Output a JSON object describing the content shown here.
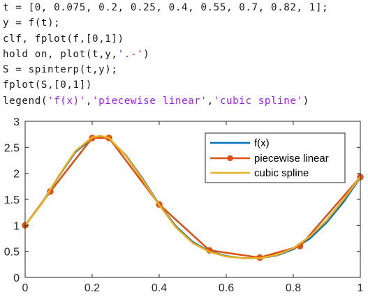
{
  "code": {
    "lines": [
      [
        {
          "t": "t = [0, 0.075, 0.2, 0.25, 0.4, 0.55, 0.7, 0.82, 1];",
          "s": false
        }
      ],
      [
        {
          "t": "y = f(t);",
          "s": false
        }
      ],
      [
        {
          "t": "clf, fplot(f,[0,1])",
          "s": false
        }
      ],
      [
        {
          "t": "hold on, plot(t,y,",
          "s": false
        },
        {
          "t": "'.-'",
          "s": true
        },
        {
          "t": ")",
          "s": false
        }
      ],
      [
        {
          "t": "S = spinterp(t,y);",
          "s": false
        }
      ],
      [
        {
          "t": "fplot(S,[0,1])",
          "s": false
        }
      ],
      [
        {
          "t": "legend(",
          "s": false
        },
        {
          "t": "'f(x)'",
          "s": true
        },
        {
          "t": ",",
          "s": false
        },
        {
          "t": "'piecewise linear'",
          "s": true
        },
        {
          "t": ",",
          "s": false
        },
        {
          "t": "'cubic spline'",
          "s": true
        },
        {
          "t": ")",
          "s": false
        }
      ]
    ]
  },
  "chart_data": {
    "type": "line",
    "xlim": [
      0,
      1
    ],
    "ylim": [
      0,
      3
    ],
    "xticks": [
      "0",
      "0.2",
      "0.4",
      "0.6",
      "0.8",
      "1"
    ],
    "yticks": [
      "0",
      "0.5",
      "1",
      "1.5",
      "2",
      "2.5",
      "3"
    ],
    "grid": false,
    "legend_position": "top-right",
    "series": [
      {
        "name": "f(x)",
        "color": "#0072bd",
        "x": [
          0,
          0.05,
          0.1,
          0.15,
          0.2,
          0.225,
          0.25,
          0.3,
          0.35,
          0.4,
          0.45,
          0.5,
          0.55,
          0.6,
          0.65,
          0.7,
          0.75,
          0.8,
          0.85,
          0.9,
          0.95,
          1
        ],
        "y": [
          1.0,
          1.43,
          1.94,
          2.41,
          2.67,
          2.7,
          2.66,
          2.35,
          1.9,
          1.4,
          0.98,
          0.68,
          0.5,
          0.41,
          0.37,
          0.37,
          0.42,
          0.54,
          0.75,
          1.06,
          1.45,
          1.92
        ]
      },
      {
        "name": "piecewise linear",
        "color": "#d95319",
        "marker": "circle",
        "x": [
          0,
          0.075,
          0.2,
          0.25,
          0.4,
          0.55,
          0.7,
          0.82,
          1
        ],
        "y": [
          1.0,
          1.65,
          2.68,
          2.68,
          1.4,
          0.52,
          0.38,
          0.6,
          1.93
        ]
      },
      {
        "name": "cubic spline",
        "color": "#edb120",
        "x": [
          0,
          0.05,
          0.1,
          0.15,
          0.2,
          0.225,
          0.25,
          0.3,
          0.35,
          0.4,
          0.45,
          0.5,
          0.55,
          0.6,
          0.65,
          0.7,
          0.75,
          0.8,
          0.85,
          0.9,
          0.95,
          1
        ],
        "y": [
          1.0,
          1.42,
          1.95,
          2.43,
          2.69,
          2.72,
          2.68,
          2.34,
          1.88,
          1.39,
          0.96,
          0.66,
          0.49,
          0.4,
          0.37,
          0.37,
          0.43,
          0.56,
          0.79,
          1.1,
          1.5,
          1.93
        ]
      }
    ]
  }
}
